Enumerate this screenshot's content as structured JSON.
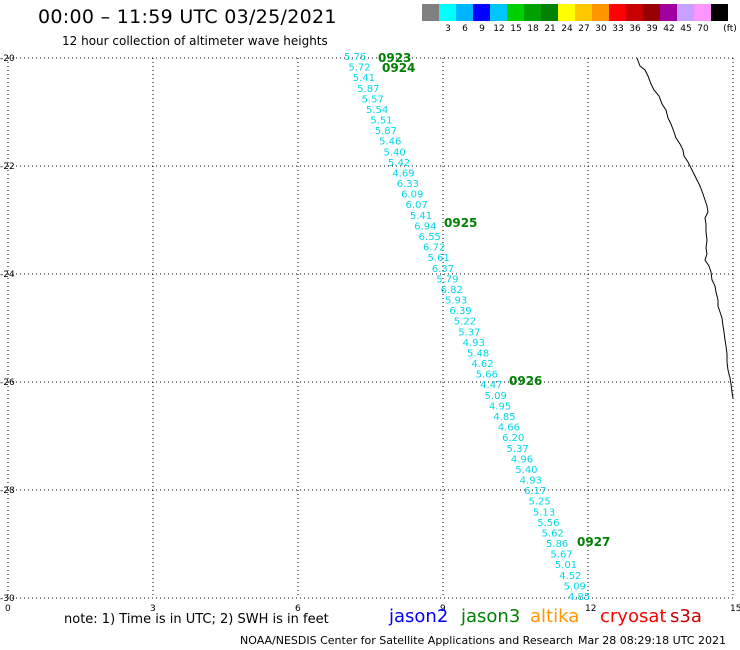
{
  "header": {
    "title": "00:00 – 11:59 UTC 03/25/2021",
    "subtitle": "12 hour collection of altimeter wave heights"
  },
  "color_scale": {
    "unit": "(ft)",
    "bins": [
      {
        "color": "#808080",
        "label": ""
      },
      {
        "color": "#00ffff",
        "label": "3"
      },
      {
        "color": "#00b4ff",
        "label": "6"
      },
      {
        "color": "#0000ff",
        "label": "9"
      },
      {
        "color": "#00c8ff",
        "label": "12"
      },
      {
        "color": "#00d000",
        "label": "15"
      },
      {
        "color": "#00a000",
        "label": "18"
      },
      {
        "color": "#008000",
        "label": "21"
      },
      {
        "color": "#ffff00",
        "label": "24"
      },
      {
        "color": "#ffc800",
        "label": "27"
      },
      {
        "color": "#ff9600",
        "label": "30"
      },
      {
        "color": "#ff0000",
        "label": "33"
      },
      {
        "color": "#c80000",
        "label": "36"
      },
      {
        "color": "#960000",
        "label": "39"
      },
      {
        "color": "#a000a0",
        "label": "42"
      },
      {
        "color": "#c8a0ff",
        "label": "45"
      },
      {
        "color": "#ff96ff",
        "label": "70"
      },
      {
        "color": "#000000",
        "label": ""
      }
    ]
  },
  "map": {
    "lon_range": [
      0,
      15
    ],
    "lat_range": [
      -20,
      -30
    ],
    "lon_ticks": [
      "0",
      "3",
      "6",
      "9",
      "12",
      "15"
    ],
    "lat_ticks": [
      "-20",
      "-22",
      "-24",
      "-26",
      "-28",
      "-30"
    ],
    "grid": "dotted"
  },
  "track": {
    "color": "#00d8e8",
    "values": [
      "5.76",
      "5.72",
      "5.41",
      "5.87",
      "5.57",
      "5.54",
      "5.51",
      "5.87",
      "5.46",
      "5.40",
      "5.42",
      "4.69",
      "6.33",
      "6.09",
      "6.07",
      "5.41",
      "6.94",
      "6.55",
      "6.72",
      "5.61",
      "6.37",
      "5.79",
      "6.82",
      "5.93",
      "6.39",
      "5.22",
      "5.37",
      "4.93",
      "5.48",
      "4.62",
      "5.66",
      "4.47",
      "5.09",
      "4.95",
      "4.85",
      "4.66",
      "6.20",
      "5.37",
      "4.96",
      "5.40",
      "4.93",
      "6.17",
      "5.25",
      "5.13",
      "5.56",
      "5.62",
      "5.86",
      "5.67",
      "5.01",
      "4.52",
      "5.09",
      "4.85"
    ]
  },
  "time_labels": {
    "color": "#008000",
    "items": [
      "0923",
      "0924",
      "0925",
      "0926",
      "0927"
    ]
  },
  "footer": {
    "note": "note: 1) Time is in UTC; 2) SWH is in feet",
    "missions": [
      {
        "name": "jason2",
        "color": "#0000ff"
      },
      {
        "name": "jason3",
        "color": "#008000"
      },
      {
        "name": "altika",
        "color": "#ff9600"
      },
      {
        "name": "cryosat",
        "color": "#ff0000"
      },
      {
        "name": "s3a",
        "color": "#c80000"
      }
    ],
    "credit": "NOAA/NESDIS Center for Satellite Applications and Research",
    "generated": "Mar 28 08:29:18 UTC 2021"
  }
}
